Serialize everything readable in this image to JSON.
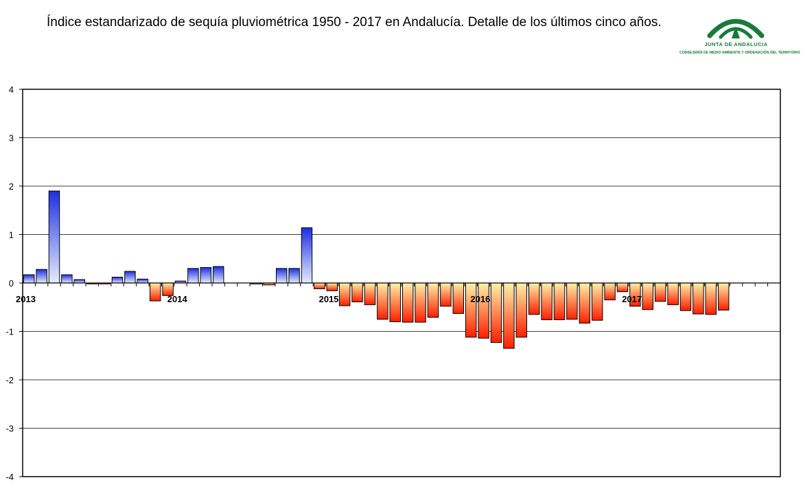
{
  "header": {
    "title": "Índice estandarizado de sequía pluviométrica 1950 - 2017 en Andalucía. Detalle de los últimos cinco años."
  },
  "logo": {
    "line1": "JUNTA DE ANDALUCIA",
    "line2": "CONSEJERÍA DE MEDIO AMBIENTE Y ORDENACIÓN DEL TERRITORIO",
    "color": "#1a7a3a"
  },
  "chart_data": {
    "type": "bar",
    "title": "Índice estandarizado de sequía pluviométrica 1950 - 2017 en Andalucía. Detalle de los últimos cinco años.",
    "xlabel": "",
    "ylabel": "",
    "ylim": [
      -4,
      4
    ],
    "yticks": [
      4,
      3,
      2,
      1,
      0,
      -1,
      -2,
      -3,
      -4
    ],
    "grid": true,
    "year_labels": [
      {
        "label": "2013",
        "month_index": 0
      },
      {
        "label": "2014",
        "month_index": 12
      },
      {
        "label": "2015",
        "month_index": 24
      },
      {
        "label": "2016",
        "month_index": 36
      },
      {
        "label": "2017",
        "month_index": 48
      }
    ],
    "months_total": 60,
    "values": [
      0.17,
      0.28,
      1.9,
      0.17,
      0.07,
      -0.02,
      -0.02,
      0.12,
      0.24,
      0.08,
      -0.37,
      -0.26,
      0.04,
      0.3,
      0.32,
      0.34,
      null,
      null,
      -0.02,
      -0.04,
      0.3,
      0.3,
      1.14,
      -0.12,
      -0.16,
      -0.47,
      -0.39,
      -0.45,
      -0.75,
      -0.8,
      -0.81,
      -0.81,
      -0.71,
      -0.48,
      -0.63,
      -1.12,
      -1.14,
      -1.23,
      -1.35,
      -1.12,
      -0.65,
      -0.76,
      -0.76,
      -0.75,
      -0.83,
      -0.77,
      -0.35,
      -0.18,
      -0.48,
      -0.55,
      -0.38,
      -0.45,
      -0.57,
      -0.64,
      -0.65,
      -0.56,
      null,
      null,
      null,
      null
    ],
    "colors": {
      "positive_top": "#1e2fe0",
      "positive_bottom": "#e4ecff",
      "negative_top": "#fff2a8",
      "negative_bottom": "#ff1e00"
    }
  }
}
